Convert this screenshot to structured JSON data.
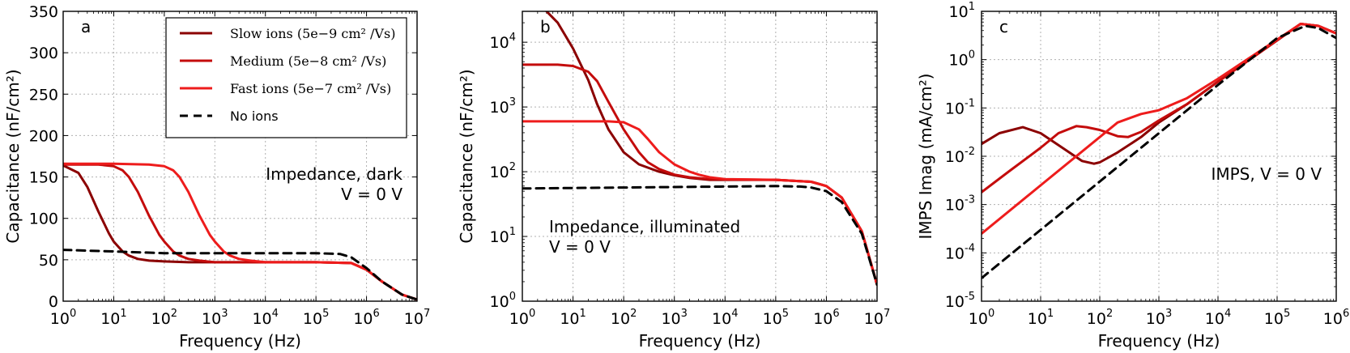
{
  "colors": {
    "slow": "#8b0000",
    "medium": "#c40c0c",
    "fast": "#ee1c1c",
    "none": "#000000"
  },
  "legend": [
    {
      "key": "slow",
      "text": "Slow ions (5e−9 cm² /Vs)",
      "dash": false
    },
    {
      "key": "medium",
      "text": "Medium (5e−8 cm² /Vs)",
      "dash": false
    },
    {
      "key": "fast",
      "text": "Fast ions (5e−7 cm² /Vs)",
      "dash": false
    },
    {
      "key": "none",
      "text": "No ions",
      "dash": true
    }
  ],
  "chart_data": [
    {
      "panel": "a",
      "type": "line",
      "xlabel": "Frequency (Hz)",
      "ylabel": "Capacitance (nF/cm²)",
      "xscale": "log",
      "yscale": "linear",
      "xlim": [
        1,
        10000000
      ],
      "ylim": [
        0,
        350
      ],
      "x_ticks": [
        "10^0",
        "10^1",
        "10^2",
        "10^3",
        "10^4",
        "10^5",
        "10^6",
        "10^7"
      ],
      "y_ticks": [
        0,
        50,
        100,
        150,
        200,
        250,
        300,
        350
      ],
      "annotation": [
        "Impedance, dark",
        "V = 0 V"
      ],
      "annotation_position": "right-middle",
      "legend_position": "top-right",
      "grid": true,
      "series": [
        {
          "key": "slow",
          "x": [
            1,
            2,
            3,
            5,
            8,
            10,
            15,
            20,
            30,
            50,
            100,
            300,
            1000,
            100000,
            500000,
            1000000,
            2000000,
            5000000,
            10000000
          ],
          "y": [
            164,
            155,
            138,
            108,
            82,
            72,
            60,
            55,
            51,
            49,
            48,
            47,
            47,
            47,
            46,
            38,
            24,
            8,
            2
          ]
        },
        {
          "key": "medium",
          "x": [
            1,
            5,
            10,
            15,
            20,
            30,
            50,
            80,
            100,
            150,
            200,
            300,
            500,
            1000,
            10000,
            100000,
            500000,
            1000000,
            2000000,
            5000000,
            10000000
          ],
          "y": [
            165,
            165,
            163,
            158,
            150,
            132,
            103,
            80,
            72,
            60,
            55,
            51,
            49,
            47,
            47,
            47,
            46,
            38,
            24,
            8,
            2
          ]
        },
        {
          "key": "fast",
          "x": [
            1,
            10,
            50,
            100,
            150,
            200,
            300,
            500,
            800,
            1000,
            1500,
            2000,
            3000,
            5000,
            10000,
            100000,
            500000,
            1000000,
            2000000,
            5000000,
            10000000
          ],
          "y": [
            166,
            166,
            165,
            163,
            158,
            150,
            132,
            103,
            80,
            72,
            60,
            55,
            51,
            49,
            47,
            47,
            46,
            38,
            24,
            8,
            2
          ]
        },
        {
          "key": "none",
          "x": [
            1,
            10,
            100,
            1000,
            10000,
            100000,
            300000,
            500000,
            1000000,
            2000000,
            5000000,
            10000000
          ],
          "y": [
            62,
            60,
            58,
            58,
            58,
            58,
            57,
            53,
            40,
            24,
            8,
            2
          ]
        }
      ]
    },
    {
      "panel": "b",
      "type": "line",
      "xlabel": "Frequency (Hz)",
      "ylabel": "Capacitance (nF/cm²)",
      "xscale": "log",
      "yscale": "log",
      "xlim": [
        1,
        10000000
      ],
      "ylim": [
        1,
        30000
      ],
      "x_ticks": [
        "10^0",
        "10^1",
        "10^2",
        "10^3",
        "10^4",
        "10^5",
        "10^6",
        "10^7"
      ],
      "y_ticks": [
        "10^0",
        "10^1",
        "10^2",
        "10^3",
        "10^4"
      ],
      "annotation": [
        "Impedance, illuminated",
        "V = 0 V"
      ],
      "annotation_position": "bottom-left",
      "grid": true,
      "series": [
        {
          "key": "slow",
          "x": [
            3,
            5,
            10,
            20,
            30,
            50,
            100,
            200,
            500,
            1000,
            2000,
            5000,
            10000,
            100000,
            500000,
            1000000,
            2000000,
            5000000,
            10000000
          ],
          "y": [
            30000,
            20000,
            8000,
            2600,
            1100,
            450,
            200,
            130,
            100,
            88,
            80,
            75,
            75,
            75,
            70,
            60,
            40,
            12,
            1.8
          ]
        },
        {
          "key": "medium",
          "x": [
            1,
            5,
            10,
            20,
            30,
            50,
            100,
            150,
            200,
            300,
            500,
            1000,
            2000,
            5000,
            10000,
            100000,
            500000,
            1000000,
            2000000,
            5000000,
            10000000
          ],
          "y": [
            4500,
            4500,
            4300,
            3500,
            2500,
            1200,
            450,
            280,
            200,
            140,
            110,
            90,
            82,
            77,
            76,
            75,
            70,
            60,
            40,
            12,
            1.8
          ]
        },
        {
          "key": "fast",
          "x": [
            1,
            50,
            100,
            200,
            300,
            500,
            1000,
            2000,
            3000,
            5000,
            10000,
            100000,
            500000,
            1000000,
            2000000,
            5000000,
            10000000
          ],
          "y": [
            600,
            600,
            580,
            450,
            320,
            200,
            130,
            100,
            90,
            82,
            77,
            75,
            70,
            60,
            40,
            12,
            1.8
          ]
        },
        {
          "key": "none",
          "x": [
            1,
            10,
            100,
            1000,
            10000,
            100000,
            300000,
            500000,
            1000000,
            2000000,
            5000000,
            10000000
          ],
          "y": [
            55,
            56,
            57,
            58,
            59,
            60,
            59,
            57,
            50,
            34,
            11,
            1.8
          ]
        }
      ]
    },
    {
      "panel": "c",
      "type": "line",
      "xlabel": "Frequency (Hz)",
      "ylabel": "IMPS Imag (mA/cm²)",
      "xscale": "log",
      "yscale": "log",
      "xlim": [
        1,
        1000000
      ],
      "ylim": [
        1e-05,
        10
      ],
      "x_ticks": [
        "10^0",
        "10^1",
        "10^2",
        "10^3",
        "10^4",
        "10^5",
        "10^6"
      ],
      "y_ticks": [
        "10^-5",
        "10^-4",
        "10^-3",
        "10^-2",
        "10^-1",
        "10^0",
        "10^1"
      ],
      "annotation": [
        "IMPS, V = 0 V"
      ],
      "annotation_position": "right-middle",
      "grid": true,
      "series": [
        {
          "key": "slow",
          "x": [
            1,
            2,
            5,
            10,
            20,
            50,
            80,
            100,
            200,
            500,
            1000,
            3000,
            10000,
            100000,
            250000,
            500000,
            1000000
          ],
          "y": [
            0.018,
            0.03,
            0.04,
            0.03,
            0.017,
            0.008,
            0.007,
            0.0075,
            0.012,
            0.025,
            0.05,
            0.12,
            0.35,
            2.5,
            5.5,
            5,
            3.5
          ]
        },
        {
          "key": "medium",
          "x": [
            1,
            3,
            10,
            20,
            40,
            60,
            100,
            200,
            300,
            500,
            1000,
            3000,
            10000,
            100000,
            250000,
            500000,
            1000000
          ],
          "y": [
            0.0018,
            0.005,
            0.015,
            0.03,
            0.042,
            0.04,
            0.035,
            0.026,
            0.025,
            0.032,
            0.055,
            0.12,
            0.35,
            2.5,
            5.5,
            5,
            3.5
          ]
        },
        {
          "key": "fast",
          "x": [
            1,
            10,
            100,
            200,
            500,
            1000,
            3000,
            10000,
            100000,
            250000,
            500000,
            1000000
          ],
          "y": [
            0.00025,
            0.0025,
            0.025,
            0.05,
            0.075,
            0.09,
            0.16,
            0.4,
            2.6,
            5.5,
            5,
            3.5
          ]
        },
        {
          "key": "none",
          "x": [
            1,
            10,
            100,
            1000,
            10000,
            100000,
            300000,
            500000,
            1000000
          ],
          "y": [
            3e-05,
            0.0003,
            0.003,
            0.03,
            0.3,
            2.8,
            5,
            4.5,
            2.8
          ]
        }
      ]
    }
  ]
}
